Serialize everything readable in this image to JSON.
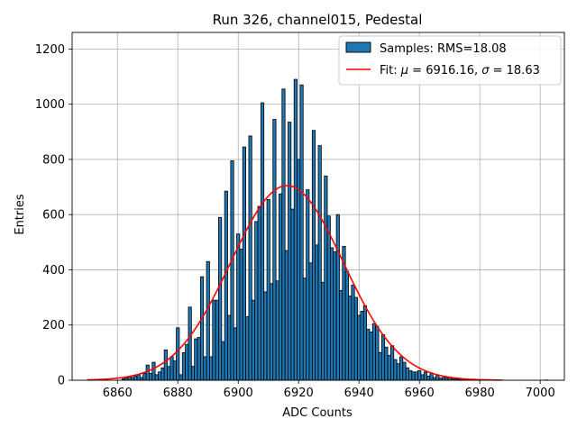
{
  "chart_data": {
    "type": "bar",
    "title": "Run 326, channel015, Pedestal",
    "xlabel": "ADC Counts",
    "ylabel": "Entries",
    "xlim": [
      6845,
      7008
    ],
    "ylim": [
      0,
      1260
    ],
    "xticks": [
      6860,
      6880,
      6900,
      6920,
      6940,
      6960,
      6980,
      7000
    ],
    "yticks": [
      0,
      200,
      400,
      600,
      800,
      1000,
      1200
    ],
    "grid": true,
    "bar_color": "#1f77b4",
    "fit_color": "#ff0000",
    "legend_position": "top-right",
    "legend": {
      "samples_label": "Samples: RMS=18.08",
      "fit_label_prefix": "Fit: ",
      "mu_symbol": "μ",
      "mu_text": " = 6916.16, ",
      "sigma_symbol": "σ",
      "sigma_text": " = 18.63"
    },
    "fit": {
      "mu": 6916.16,
      "sigma": 18.63,
      "amplitude": 705,
      "x_range": [
        6850,
        6987
      ]
    },
    "bins": [
      {
        "x": 6862,
        "y": 5
      },
      {
        "x": 6863,
        "y": 8
      },
      {
        "x": 6864,
        "y": 12
      },
      {
        "x": 6865,
        "y": 10
      },
      {
        "x": 6866,
        "y": 15
      },
      {
        "x": 6867,
        "y": 20
      },
      {
        "x": 6868,
        "y": 10
      },
      {
        "x": 6869,
        "y": 25
      },
      {
        "x": 6870,
        "y": 55
      },
      {
        "x": 6871,
        "y": 25
      },
      {
        "x": 6872,
        "y": 65
      },
      {
        "x": 6873,
        "y": 20
      },
      {
        "x": 6874,
        "y": 30
      },
      {
        "x": 6875,
        "y": 45
      },
      {
        "x": 6876,
        "y": 110
      },
      {
        "x": 6877,
        "y": 50
      },
      {
        "x": 6878,
        "y": 85
      },
      {
        "x": 6879,
        "y": 70
      },
      {
        "x": 6880,
        "y": 190
      },
      {
        "x": 6881,
        "y": 20
      },
      {
        "x": 6882,
        "y": 100
      },
      {
        "x": 6883,
        "y": 130
      },
      {
        "x": 6884,
        "y": 265
      },
      {
        "x": 6885,
        "y": 50
      },
      {
        "x": 6886,
        "y": 150
      },
      {
        "x": 6887,
        "y": 155
      },
      {
        "x": 6888,
        "y": 375
      },
      {
        "x": 6889,
        "y": 85
      },
      {
        "x": 6890,
        "y": 430
      },
      {
        "x": 6891,
        "y": 85
      },
      {
        "x": 6892,
        "y": 290
      },
      {
        "x": 6893,
        "y": 290
      },
      {
        "x": 6894,
        "y": 590
      },
      {
        "x": 6895,
        "y": 140
      },
      {
        "x": 6896,
        "y": 685
      },
      {
        "x": 6897,
        "y": 235
      },
      {
        "x": 6898,
        "y": 795
      },
      {
        "x": 6899,
        "y": 190
      },
      {
        "x": 6900,
        "y": 530
      },
      {
        "x": 6901,
        "y": 475
      },
      {
        "x": 6902,
        "y": 845
      },
      {
        "x": 6903,
        "y": 230
      },
      {
        "x": 6904,
        "y": 885
      },
      {
        "x": 6905,
        "y": 290
      },
      {
        "x": 6906,
        "y": 575
      },
      {
        "x": 6907,
        "y": 630
      },
      {
        "x": 6908,
        "y": 1005
      },
      {
        "x": 6909,
        "y": 320
      },
      {
        "x": 6910,
        "y": 655
      },
      {
        "x": 6911,
        "y": 350
      },
      {
        "x": 6912,
        "y": 945
      },
      {
        "x": 6913,
        "y": 360
      },
      {
        "x": 6914,
        "y": 675
      },
      {
        "x": 6915,
        "y": 1055
      },
      {
        "x": 6916,
        "y": 470
      },
      {
        "x": 6917,
        "y": 935
      },
      {
        "x": 6918,
        "y": 620
      },
      {
        "x": 6919,
        "y": 1090
      },
      {
        "x": 6920,
        "y": 800
      },
      {
        "x": 6921,
        "y": 1070
      },
      {
        "x": 6922,
        "y": 370
      },
      {
        "x": 6923,
        "y": 690
      },
      {
        "x": 6924,
        "y": 425
      },
      {
        "x": 6925,
        "y": 905
      },
      {
        "x": 6926,
        "y": 490
      },
      {
        "x": 6927,
        "y": 850
      },
      {
        "x": 6928,
        "y": 355
      },
      {
        "x": 6929,
        "y": 740
      },
      {
        "x": 6930,
        "y": 595
      },
      {
        "x": 6931,
        "y": 480
      },
      {
        "x": 6932,
        "y": 465
      },
      {
        "x": 6933,
        "y": 600
      },
      {
        "x": 6934,
        "y": 325
      },
      {
        "x": 6935,
        "y": 485
      },
      {
        "x": 6936,
        "y": 395
      },
      {
        "x": 6937,
        "y": 305
      },
      {
        "x": 6938,
        "y": 345
      },
      {
        "x": 6939,
        "y": 300
      },
      {
        "x": 6940,
        "y": 235
      },
      {
        "x": 6941,
        "y": 250
      },
      {
        "x": 6942,
        "y": 270
      },
      {
        "x": 6943,
        "y": 185
      },
      {
        "x": 6944,
        "y": 175
      },
      {
        "x": 6945,
        "y": 205
      },
      {
        "x": 6946,
        "y": 195
      },
      {
        "x": 6947,
        "y": 100
      },
      {
        "x": 6948,
        "y": 165
      },
      {
        "x": 6949,
        "y": 120
      },
      {
        "x": 6950,
        "y": 90
      },
      {
        "x": 6951,
        "y": 125
      },
      {
        "x": 6952,
        "y": 75
      },
      {
        "x": 6953,
        "y": 60
      },
      {
        "x": 6954,
        "y": 85
      },
      {
        "x": 6955,
        "y": 65
      },
      {
        "x": 6956,
        "y": 45
      },
      {
        "x": 6957,
        "y": 35
      },
      {
        "x": 6958,
        "y": 30
      },
      {
        "x": 6959,
        "y": 30
      },
      {
        "x": 6960,
        "y": 35
      },
      {
        "x": 6961,
        "y": 20
      },
      {
        "x": 6962,
        "y": 30
      },
      {
        "x": 6963,
        "y": 15
      },
      {
        "x": 6964,
        "y": 25
      },
      {
        "x": 6965,
        "y": 10
      },
      {
        "x": 6966,
        "y": 18
      },
      {
        "x": 6967,
        "y": 8
      },
      {
        "x": 6968,
        "y": 10
      },
      {
        "x": 6969,
        "y": 8
      },
      {
        "x": 6970,
        "y": 12
      },
      {
        "x": 6971,
        "y": 6
      },
      {
        "x": 6972,
        "y": 5
      },
      {
        "x": 6973,
        "y": 4
      },
      {
        "x": 6974,
        "y": 4
      },
      {
        "x": 6975,
        "y": 3
      },
      {
        "x": 6976,
        "y": 3
      },
      {
        "x": 6977,
        "y": 2
      },
      {
        "x": 6978,
        "y": 2
      },
      {
        "x": 6979,
        "y": 2
      },
      {
        "x": 6980,
        "y": 1
      },
      {
        "x": 6982,
        "y": 1
      },
      {
        "x": 6984,
        "y": 1
      },
      {
        "x": 6987,
        "y": 1
      },
      {
        "x": 7002,
        "y": 1
      }
    ]
  }
}
